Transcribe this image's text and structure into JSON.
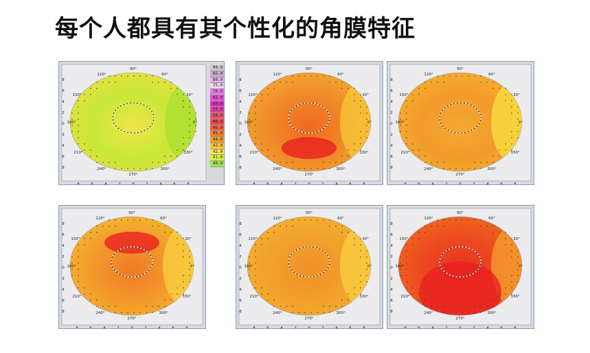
{
  "title": "每个人都具有其个性化的角膜特征",
  "colors": {
    "frame": "#7f9dbd",
    "panel_bg": "#d9d9dd",
    "zone_ring": "#ffffff"
  },
  "scale": {
    "labels": [
      "90.0",
      "85.0",
      "80.0",
      "75.0",
      "70.0",
      "65.0",
      "60.0",
      "55.0",
      "50.0",
      "48.0",
      "46.0",
      "45.0",
      "44.0",
      "43.0",
      "42.0",
      "41.0",
      "40.0"
    ],
    "colors": [
      "#c8c8c8",
      "#d0a8d8",
      "#e0b8e8",
      "#f0d0f0",
      "#e878e8",
      "#e050d0",
      "#d830c0",
      "#e040a0",
      "#e85070",
      "#f04848",
      "#f06040",
      "#f08030",
      "#f0a020",
      "#f8c840",
      "#f8e850",
      "#d8f040",
      "#a0e850"
    ]
  },
  "axis": {
    "angle_90": "90°",
    "angle_120": "120°",
    "angle_60": "60°",
    "angle_150": "150°",
    "angle_30": "30°",
    "angle_180": "180°",
    "angle_0": "0°",
    "angle_210": "210°",
    "angle_330": "330°",
    "angle_240": "240°",
    "angle_300": "300°",
    "angle_270": "270°",
    "ticks": [
      "8",
      "6",
      "4",
      "2",
      "0",
      "2",
      "4",
      "6",
      "8"
    ]
  },
  "maps": [
    {
      "id": "map-1",
      "base": "#e8e040",
      "zones": [
        [
          "#c8e838",
          0.55
        ],
        [
          "#f0e448",
          0.4
        ]
      ],
      "edge": "#a8e030",
      "hot": ""
    },
    {
      "id": "map-2",
      "base": "#f4a830",
      "zones": [
        [
          "#f08a28",
          0.6
        ],
        [
          "#f06a20",
          0.4
        ]
      ],
      "edge": "#f8c838",
      "hot": "#e82020"
    },
    {
      "id": "map-3",
      "base": "#f4b030",
      "zones": [
        [
          "#f29a2c",
          0.6
        ],
        [
          "#f4a830",
          0.35
        ]
      ],
      "edge": "#f8e040",
      "hot": ""
    },
    {
      "id": "map-4",
      "base": "#f4b830",
      "zones": [
        [
          "#f29a2c",
          0.6
        ],
        [
          "#f07a28",
          0.35
        ]
      ],
      "edge": "#f8d040",
      "hot": "#e82020"
    },
    {
      "id": "map-5",
      "base": "#f4b030",
      "zones": [
        [
          "#f2a02c",
          0.6
        ],
        [
          "#f09028",
          0.35
        ]
      ],
      "edge": "#f8d040",
      "hot": ""
    },
    {
      "id": "map-6",
      "base": "#f06a20",
      "zones": [
        [
          "#ec4a20",
          0.6
        ],
        [
          "#e83020",
          0.4
        ]
      ],
      "edge": "#f4a030",
      "hot": "#e82020"
    }
  ]
}
